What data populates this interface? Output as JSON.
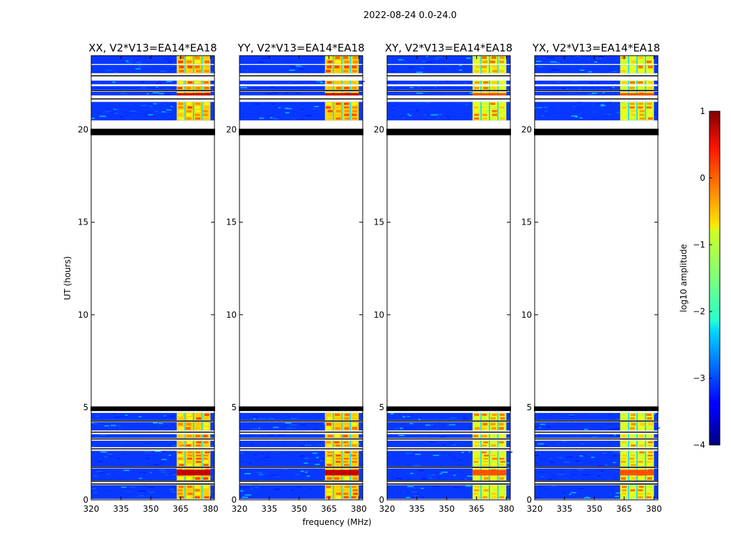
{
  "chart_data": {
    "type": "heatmap",
    "suptitle": "2022-08-24 0.0-24.0",
    "xlabel": "frequency (MHz)",
    "ylabel": "UT (hours)",
    "xlim": [
      320,
      382
    ],
    "ylim": [
      0,
      24
    ],
    "x_ticks": [
      "320",
      "335",
      "350",
      "365",
      "380"
    ],
    "y_ticks": [
      "0",
      "5",
      "10",
      "15",
      "20"
    ],
    "panels": [
      {
        "title": "XX, V2*V13=EA14*EA18",
        "band_level": "high"
      },
      {
        "title": "YY, V2*V13=EA14*EA18",
        "band_level": "high"
      },
      {
        "title": "XY, V2*V13=EA14*EA18",
        "band_level": "mid"
      },
      {
        "title": "YX, V2*V13=EA14*EA18",
        "band_level": "mid"
      }
    ],
    "data_blocks_hours": [
      [
        0.05,
        0.8
      ],
      [
        1.05,
        1.7
      ],
      [
        1.8,
        2.65
      ],
      [
        2.85,
        3.2
      ],
      [
        3.35,
        3.55
      ],
      [
        3.75,
        4.2
      ],
      [
        4.3,
        4.7
      ],
      [
        20.5,
        21.5
      ],
      [
        21.85,
        22.05
      ],
      [
        22.15,
        22.35
      ],
      [
        22.45,
        22.65
      ],
      [
        23.05,
        23.5
      ],
      [
        23.55,
        24.0
      ]
    ],
    "flagged_hours": [
      [
        4.8,
        5.05
      ],
      [
        19.7,
        20.05
      ]
    ],
    "rfi_band_mhz": [
      363,
      380
    ],
    "colorbar": {
      "label": "log10 amplitude",
      "range": [
        -4,
        1
      ],
      "ticks": [
        "1",
        "0",
        "−1",
        "−2",
        "−3",
        "−4"
      ],
      "colormap": "jet"
    }
  }
}
